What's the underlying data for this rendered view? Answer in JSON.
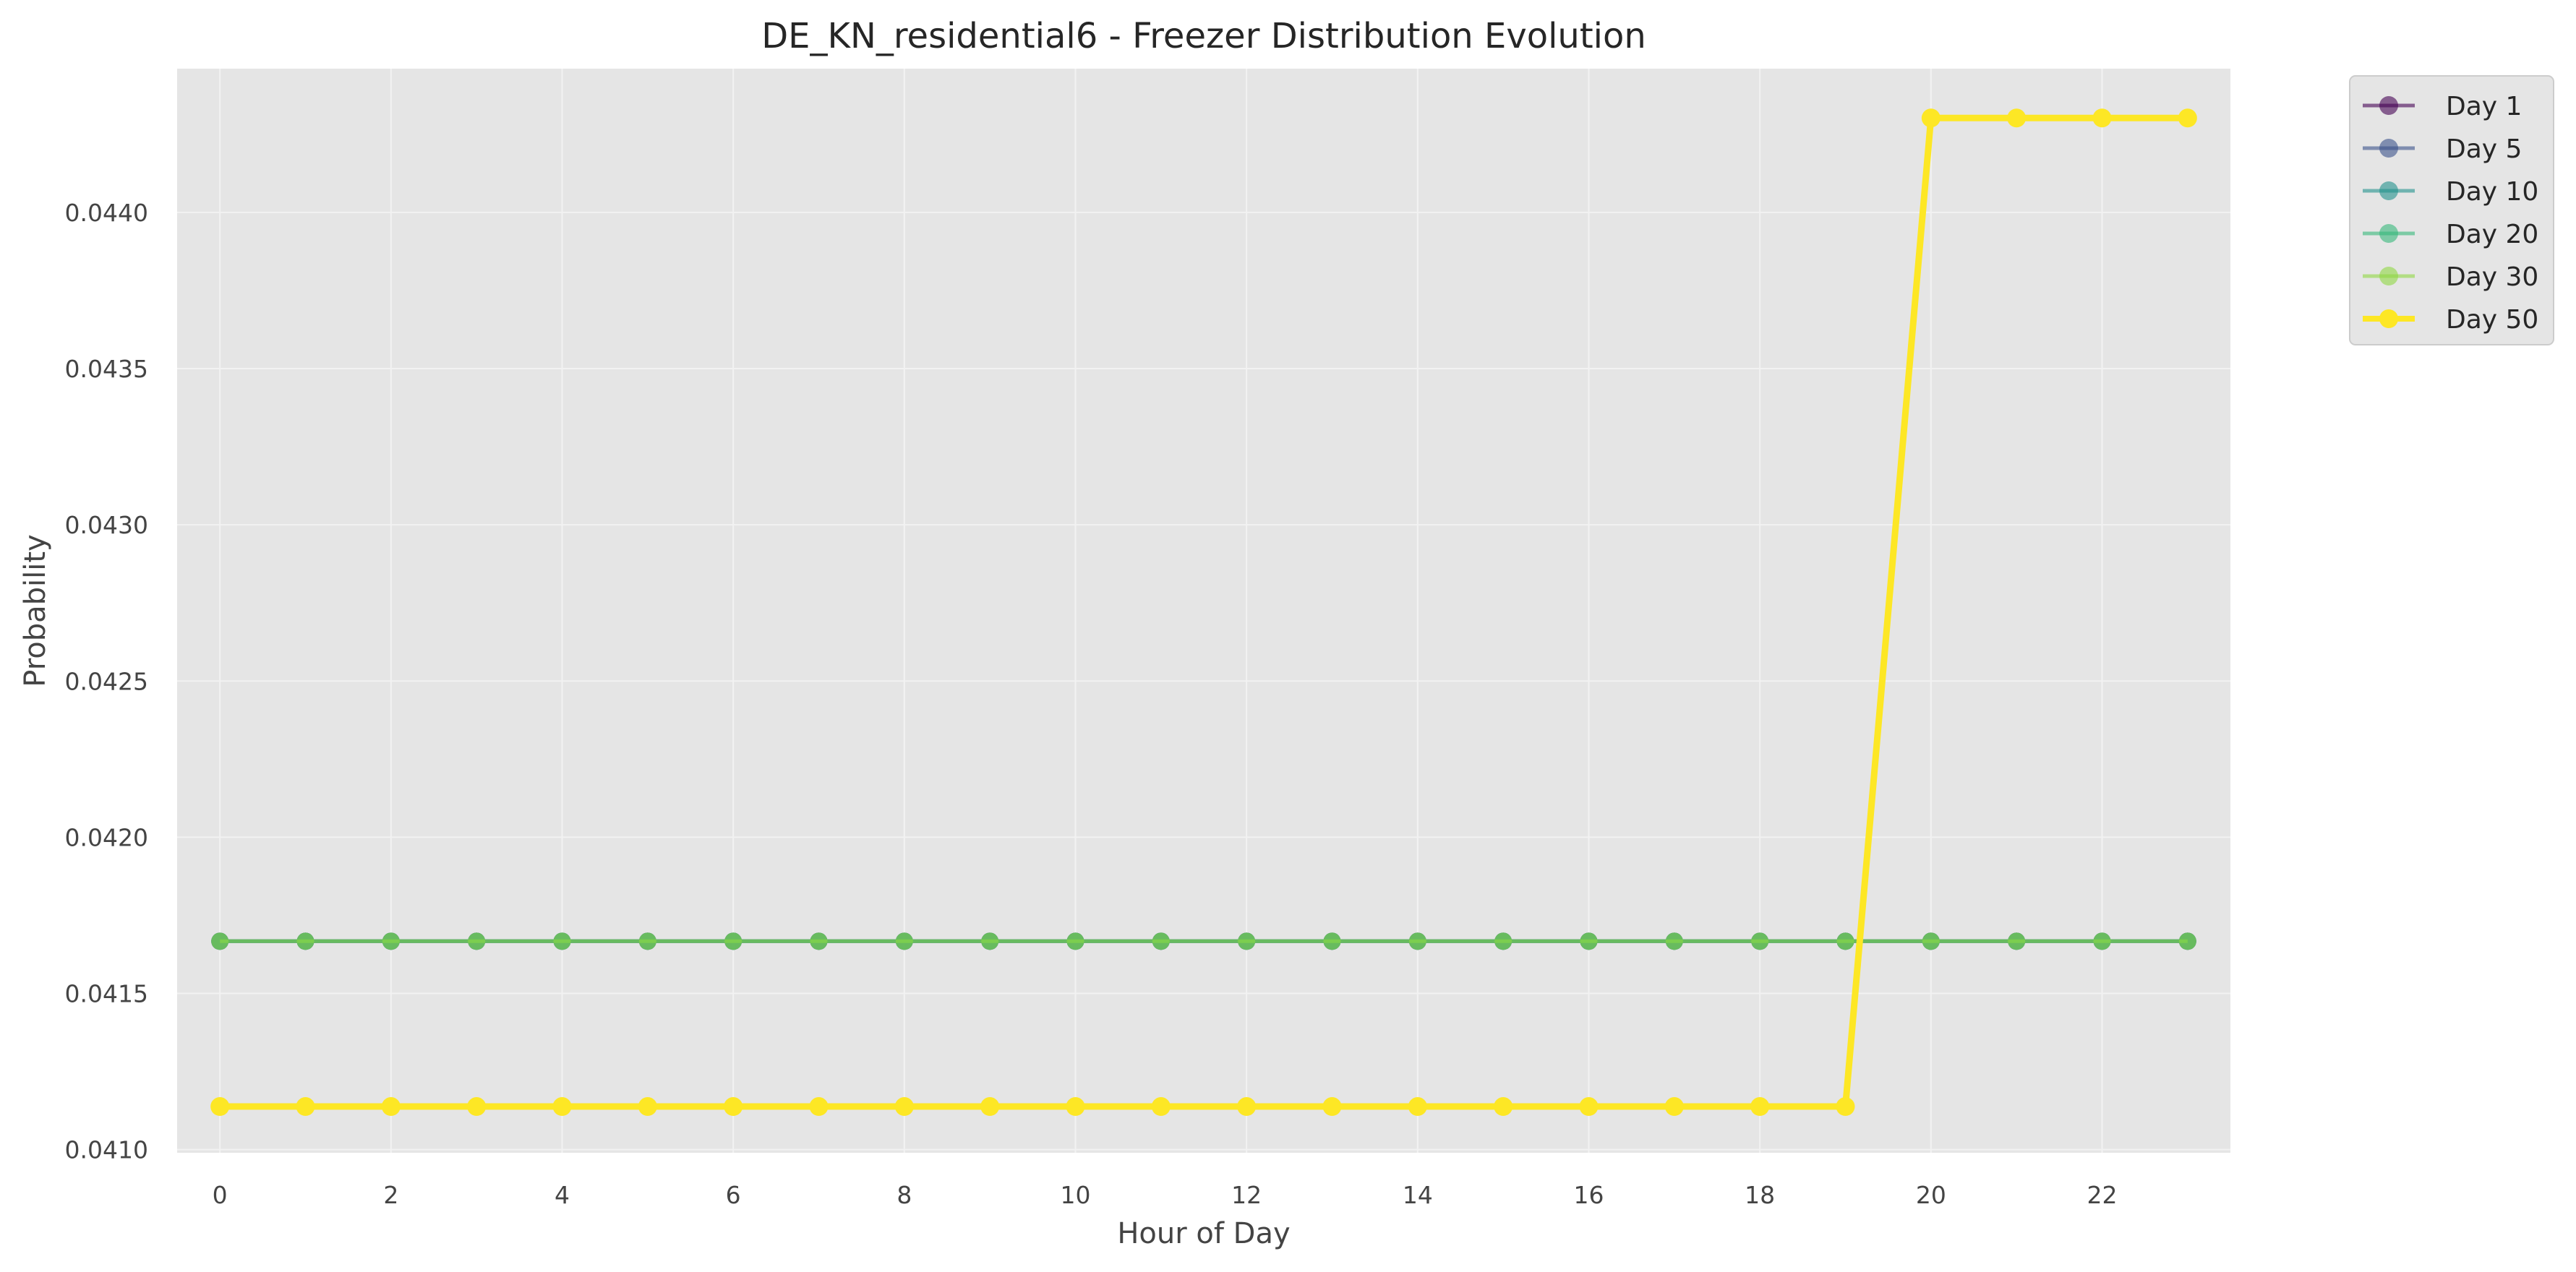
{
  "chart_data": {
    "type": "line",
    "title": "DE_KN_residential6 - Freezer Distribution Evolution",
    "xlabel": "Hour of Day",
    "ylabel": "Probability",
    "x": [
      0,
      1,
      2,
      3,
      4,
      5,
      6,
      7,
      8,
      9,
      10,
      11,
      12,
      13,
      14,
      15,
      16,
      17,
      18,
      19,
      20,
      21,
      22,
      23
    ],
    "xticks": [
      0,
      2,
      4,
      6,
      8,
      10,
      12,
      14,
      16,
      18,
      20,
      22
    ],
    "yticks": [
      0.041,
      0.0415,
      0.042,
      0.0425,
      0.043,
      0.0435,
      0.044
    ],
    "ytick_labels": [
      "0.0410",
      "0.0415",
      "0.0420",
      "0.0425",
      "0.0430",
      "0.0435",
      "0.0440"
    ],
    "xlim": [
      -0.5,
      23.5
    ],
    "ylim": [
      0.04099,
      0.04446
    ],
    "grid": true,
    "legend_position": "outside-top-right",
    "series": [
      {
        "name": "Day 1",
        "color": "#440154",
        "values": [
          0.041667,
          0.041667,
          0.041667,
          0.041667,
          0.041667,
          0.041667,
          0.041667,
          0.041667,
          0.041667,
          0.041667,
          0.041667,
          0.041667,
          0.041667,
          0.041667,
          0.041667,
          0.041667,
          0.041667,
          0.041667,
          0.041667,
          0.041667,
          0.041667,
          0.041667,
          0.041667,
          0.041667
        ]
      },
      {
        "name": "Day 5",
        "color": "#3b528b",
        "values": [
          0.041667,
          0.041667,
          0.041667,
          0.041667,
          0.041667,
          0.041667,
          0.041667,
          0.041667,
          0.041667,
          0.041667,
          0.041667,
          0.041667,
          0.041667,
          0.041667,
          0.041667,
          0.041667,
          0.041667,
          0.041667,
          0.041667,
          0.041667,
          0.041667,
          0.041667,
          0.041667,
          0.041667
        ]
      },
      {
        "name": "Day 10",
        "color": "#21918c",
        "values": [
          0.041667,
          0.041667,
          0.041667,
          0.041667,
          0.041667,
          0.041667,
          0.041667,
          0.041667,
          0.041667,
          0.041667,
          0.041667,
          0.041667,
          0.041667,
          0.041667,
          0.041667,
          0.041667,
          0.041667,
          0.041667,
          0.041667,
          0.041667,
          0.041667,
          0.041667,
          0.041667,
          0.041667
        ]
      },
      {
        "name": "Day 20",
        "color": "#35b779",
        "values": [
          0.041667,
          0.041667,
          0.041667,
          0.041667,
          0.041667,
          0.041667,
          0.041667,
          0.041667,
          0.041667,
          0.041667,
          0.041667,
          0.041667,
          0.041667,
          0.041667,
          0.041667,
          0.041667,
          0.041667,
          0.041667,
          0.041667,
          0.041667,
          0.041667,
          0.041667,
          0.041667,
          0.041667
        ]
      },
      {
        "name": "Day 30",
        "color": "#90d743",
        "values": [
          0.041667,
          0.041667,
          0.041667,
          0.041667,
          0.041667,
          0.041667,
          0.041667,
          0.041667,
          0.041667,
          0.041667,
          0.041667,
          0.041667,
          0.041667,
          0.041667,
          0.041667,
          0.041667,
          0.041667,
          0.041667,
          0.041667,
          0.041667,
          0.041667,
          0.041667,
          0.041667,
          0.041667
        ]
      },
      {
        "name": "Day 50",
        "color": "#fde725",
        "values": [
          0.041138,
          0.041138,
          0.041138,
          0.041138,
          0.041138,
          0.041138,
          0.041138,
          0.041138,
          0.041138,
          0.041138,
          0.041138,
          0.041138,
          0.041138,
          0.041138,
          0.041138,
          0.041138,
          0.041138,
          0.041138,
          0.041138,
          0.041138,
          0.044302,
          0.044302,
          0.044302,
          0.044302
        ]
      }
    ]
  }
}
